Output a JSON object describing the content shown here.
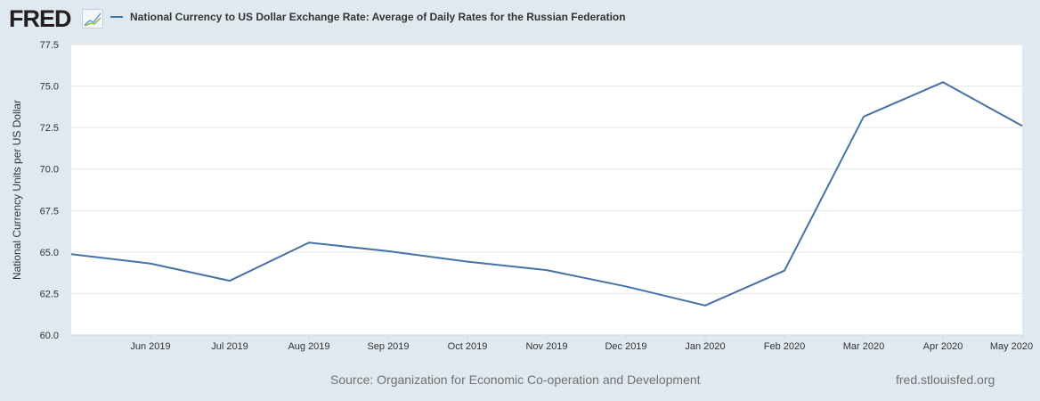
{
  "header": {
    "logo": "FRED",
    "legend_label": "National Currency to US Dollar Exchange Rate: Average of Daily Rates for the Russian Federation"
  },
  "footer": {
    "source": "Source: Organization for Economic Co-operation and Development",
    "url": "fred.stlouisfed.org"
  },
  "chart_data": {
    "type": "line",
    "title": "",
    "ylabel": "National Currency Units per US Dollar",
    "ylim": [
      60.0,
      77.5
    ],
    "yticks": [
      "60.0",
      "62.5",
      "65.0",
      "67.5",
      "70.0",
      "72.5",
      "75.0",
      "77.5"
    ],
    "x": [
      "2019-05",
      "2019-06",
      "2019-07",
      "2019-08",
      "2019-09",
      "2019-10",
      "2019-11",
      "2019-12",
      "2020-01",
      "2020-02",
      "2020-03",
      "2020-04",
      "2020-05"
    ],
    "xticks": [
      "Jun 2019",
      "Jul 2019",
      "Aug 2019",
      "Sep 2019",
      "Oct 2019",
      "Nov 2019",
      "Dec 2019",
      "Jan 2020",
      "Feb 2020",
      "Mar 2020",
      "Apr 2020",
      "May 2020"
    ],
    "series": [
      {
        "name": "National Currency to US Dollar Exchange Rate: Average of Daily Rates for the Russian Federation",
        "color": "#4572a7",
        "values": [
          64.87,
          64.31,
          63.27,
          65.57,
          65.05,
          64.42,
          63.91,
          62.93,
          61.78,
          63.88,
          73.16,
          75.23,
          72.6
        ]
      }
    ],
    "grid": true
  }
}
